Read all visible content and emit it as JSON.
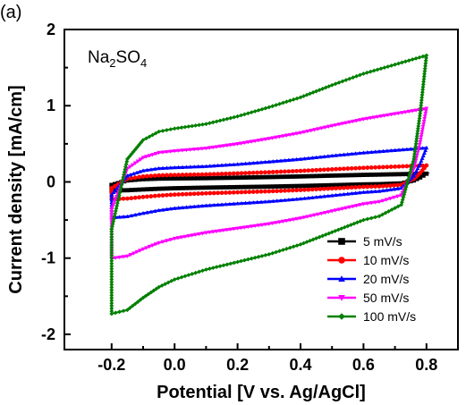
{
  "chart_data": {
    "type": "line",
    "panel_label": "(a)",
    "annotation": {
      "main": "Na",
      "sub1": "2",
      "mid": "SO",
      "sub2": "4"
    },
    "xlabel": "Potential [V vs. Ag/AgCl]",
    "ylabel": "Current density [mA/cm]",
    "xlim": [
      -0.35,
      0.9
    ],
    "ylim": [
      -2.2,
      2.0
    ],
    "xticks": [
      -0.2,
      0.0,
      0.2,
      0.4,
      0.6,
      0.8
    ],
    "xtick_labels": [
      "-0.2",
      "0.0",
      "0.2",
      "0.4",
      "0.6",
      "0.8"
    ],
    "yticks": [
      -2,
      -1,
      0,
      1,
      2
    ],
    "ytick_labels": [
      "-2",
      "-1",
      "0",
      "1",
      "2"
    ],
    "legend_position": "bottom-right",
    "series": [
      {
        "name": "5 mV/s",
        "color": "#000000",
        "marker": "square",
        "scale": 0.065
      },
      {
        "name": "10 mV/s",
        "color": "#ff0000",
        "marker": "circle",
        "scale": 0.13
      },
      {
        "name": "20 mV/s",
        "color": "#0000ff",
        "marker": "triangle",
        "scale": 0.27
      },
      {
        "name": "50 mV/s",
        "color": "#ff00ff",
        "marker": "triangle-down",
        "scale": 0.58
      },
      {
        "name": "100 mV/s",
        "color": "#008000",
        "marker": "diamond",
        "scale": 1.0
      }
    ],
    "base_loop": {
      "upper": [
        [
          -0.2,
          -0.62
        ],
        [
          -0.15,
          0.3
        ],
        [
          -0.1,
          0.55
        ],
        [
          -0.05,
          0.66
        ],
        [
          0.0,
          0.7
        ],
        [
          0.1,
          0.76
        ],
        [
          0.2,
          0.86
        ],
        [
          0.3,
          0.98
        ],
        [
          0.4,
          1.11
        ],
        [
          0.5,
          1.27
        ],
        [
          0.6,
          1.42
        ],
        [
          0.7,
          1.54
        ],
        [
          0.8,
          1.66
        ]
      ],
      "lower": [
        [
          0.8,
          1.66
        ],
        [
          0.78,
          0.9
        ],
        [
          0.76,
          0.3
        ],
        [
          0.72,
          -0.3
        ],
        [
          0.65,
          -0.45
        ],
        [
          0.6,
          -0.5
        ],
        [
          0.5,
          -0.66
        ],
        [
          0.4,
          -0.82
        ],
        [
          0.3,
          -0.95
        ],
        [
          0.2,
          -1.05
        ],
        [
          0.1,
          -1.15
        ],
        [
          0.0,
          -1.28
        ],
        [
          -0.05,
          -1.38
        ],
        [
          -0.1,
          -1.52
        ],
        [
          -0.15,
          -1.68
        ],
        [
          -0.2,
          -1.73
        ],
        [
          -0.2,
          -0.62
        ]
      ]
    }
  }
}
